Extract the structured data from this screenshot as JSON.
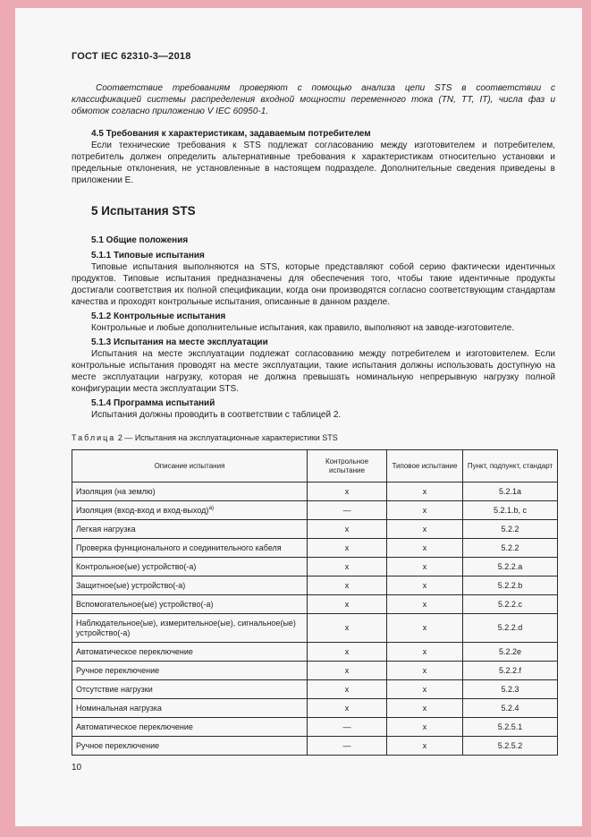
{
  "page": {
    "header": "ГОСТ IEC 62310-3—2018",
    "page_number": "10"
  },
  "content": {
    "intro_italic": "Соответствие требованиям проверяют с помощью анализа цепи STS в соответствии с классификацией системы распределения входной мощности переменного тока (TN, TT, IT), числа фаз и обмоток согласно приложению V IEC 60950-1.",
    "s45_heading": "4.5 Требования к характеристикам, задаваемым потребителем",
    "s45_para": "Если технические требования к STS подлежат согласованию между изготовителем и потребителем, потребитель должен определить альтернативные требования к характеристикам относительно установки и предельные отклонения, не установленные в настоящем подразделе. Дополнительные сведения приведены в приложении Е.",
    "s5_heading": "5 Испытания STS",
    "s51_heading": "5.1 Общие положения",
    "s511_heading": "5.1.1 Типовые испытания",
    "s511_para": "Типовые испытания выполняются на STS, которые представляют собой серию фактически идентичных продуктов. Типовые испытания предназначены для обеспечения того, чтобы такие идентичные продукты достигали соответствия их полной спецификации, когда они производятся согласно соответствующим стандартам качества и проходят контрольные испытания, описанные в данном разделе.",
    "s512_heading": "5.1.2 Контрольные испытания",
    "s512_para": "Контрольные и любые дополнительные испытания, как правило, выполняют на заводе-изготовителе.",
    "s513_heading": "5.1.3 Испытания на месте эксплуатации",
    "s513_para": "Испытания на месте эксплуатации подлежат согласованию между потребителем и изготовителем. Если контрольные испытания проводят на месте эксплуатации, такие испытания должны использовать доступную на месте эксплуатации нагрузку, которая не должна превышать номинальную непрерывную нагрузку полной конфигурации места эксплуатации STS.",
    "s514_heading": "5.1.4 Программа испытаний",
    "s514_para": "Испытания должны проводить в соответствии с таблицей 2."
  },
  "table": {
    "caption_label": "Таблица",
    "caption_rest": "2 — Испытания на эксплуатационные характеристики STS",
    "columns": [
      "Описание испытания",
      "Контрольное испытание",
      "Типовое испытание",
      "Пункт, подпункт, стандарт"
    ],
    "rows": [
      {
        "desc": "Изоляция (на землю)",
        "sup": "",
        "routine": "x",
        "type": "x",
        "clause": "5.2.1a"
      },
      {
        "desc": "Изоляция (вход-вход и вход-выход)",
        "sup": "а)",
        "routine": "—",
        "type": "x",
        "clause": "5.2.1.b, c"
      },
      {
        "desc": "Легкая нагрузка",
        "sup": "",
        "routine": "x",
        "type": "x",
        "clause": "5.2.2"
      },
      {
        "desc": "Проверка функционального и соединительного кабеля",
        "sup": "",
        "routine": "x",
        "type": "x",
        "clause": "5.2.2"
      },
      {
        "desc": "Контрольное(ые) устройство(-а)",
        "sup": "",
        "routine": "x",
        "type": "x",
        "clause": "5.2.2.a"
      },
      {
        "desc": "Защитное(ые) устройство(-а)",
        "sup": "",
        "routine": "x",
        "type": "x",
        "clause": "5.2.2.b"
      },
      {
        "desc": "Вспомогательное(ые) устройство(-а)",
        "sup": "",
        "routine": "x",
        "type": "x",
        "clause": "5.2.2.c"
      },
      {
        "desc": "Наблюдательное(ые), измерительное(ые), сигнальное(ые) устройство(-а)",
        "sup": "",
        "routine": "x",
        "type": "x",
        "clause": "5.2.2.d"
      },
      {
        "desc": "Автоматическое переключение",
        "sup": "",
        "routine": "x",
        "type": "x",
        "clause": "5.2.2e"
      },
      {
        "desc": "Ручное переключение",
        "sup": "",
        "routine": "x",
        "type": "x",
        "clause": "5.2.2.f"
      },
      {
        "desc": "Отсутствие нагрузки",
        "sup": "",
        "routine": "x",
        "type": "x",
        "clause": "5.2.3"
      },
      {
        "desc": "Номинальная нагрузка",
        "sup": "",
        "routine": "x",
        "type": "x",
        "clause": "5.2.4"
      },
      {
        "desc": "Автоматическое переключение",
        "sup": "",
        "routine": "—",
        "type": "x",
        "clause": "5.2.5.1"
      },
      {
        "desc": "Ручное переключение",
        "sup": "",
        "routine": "—",
        "type": "x",
        "clause": "5.2.5.2"
      }
    ]
  }
}
